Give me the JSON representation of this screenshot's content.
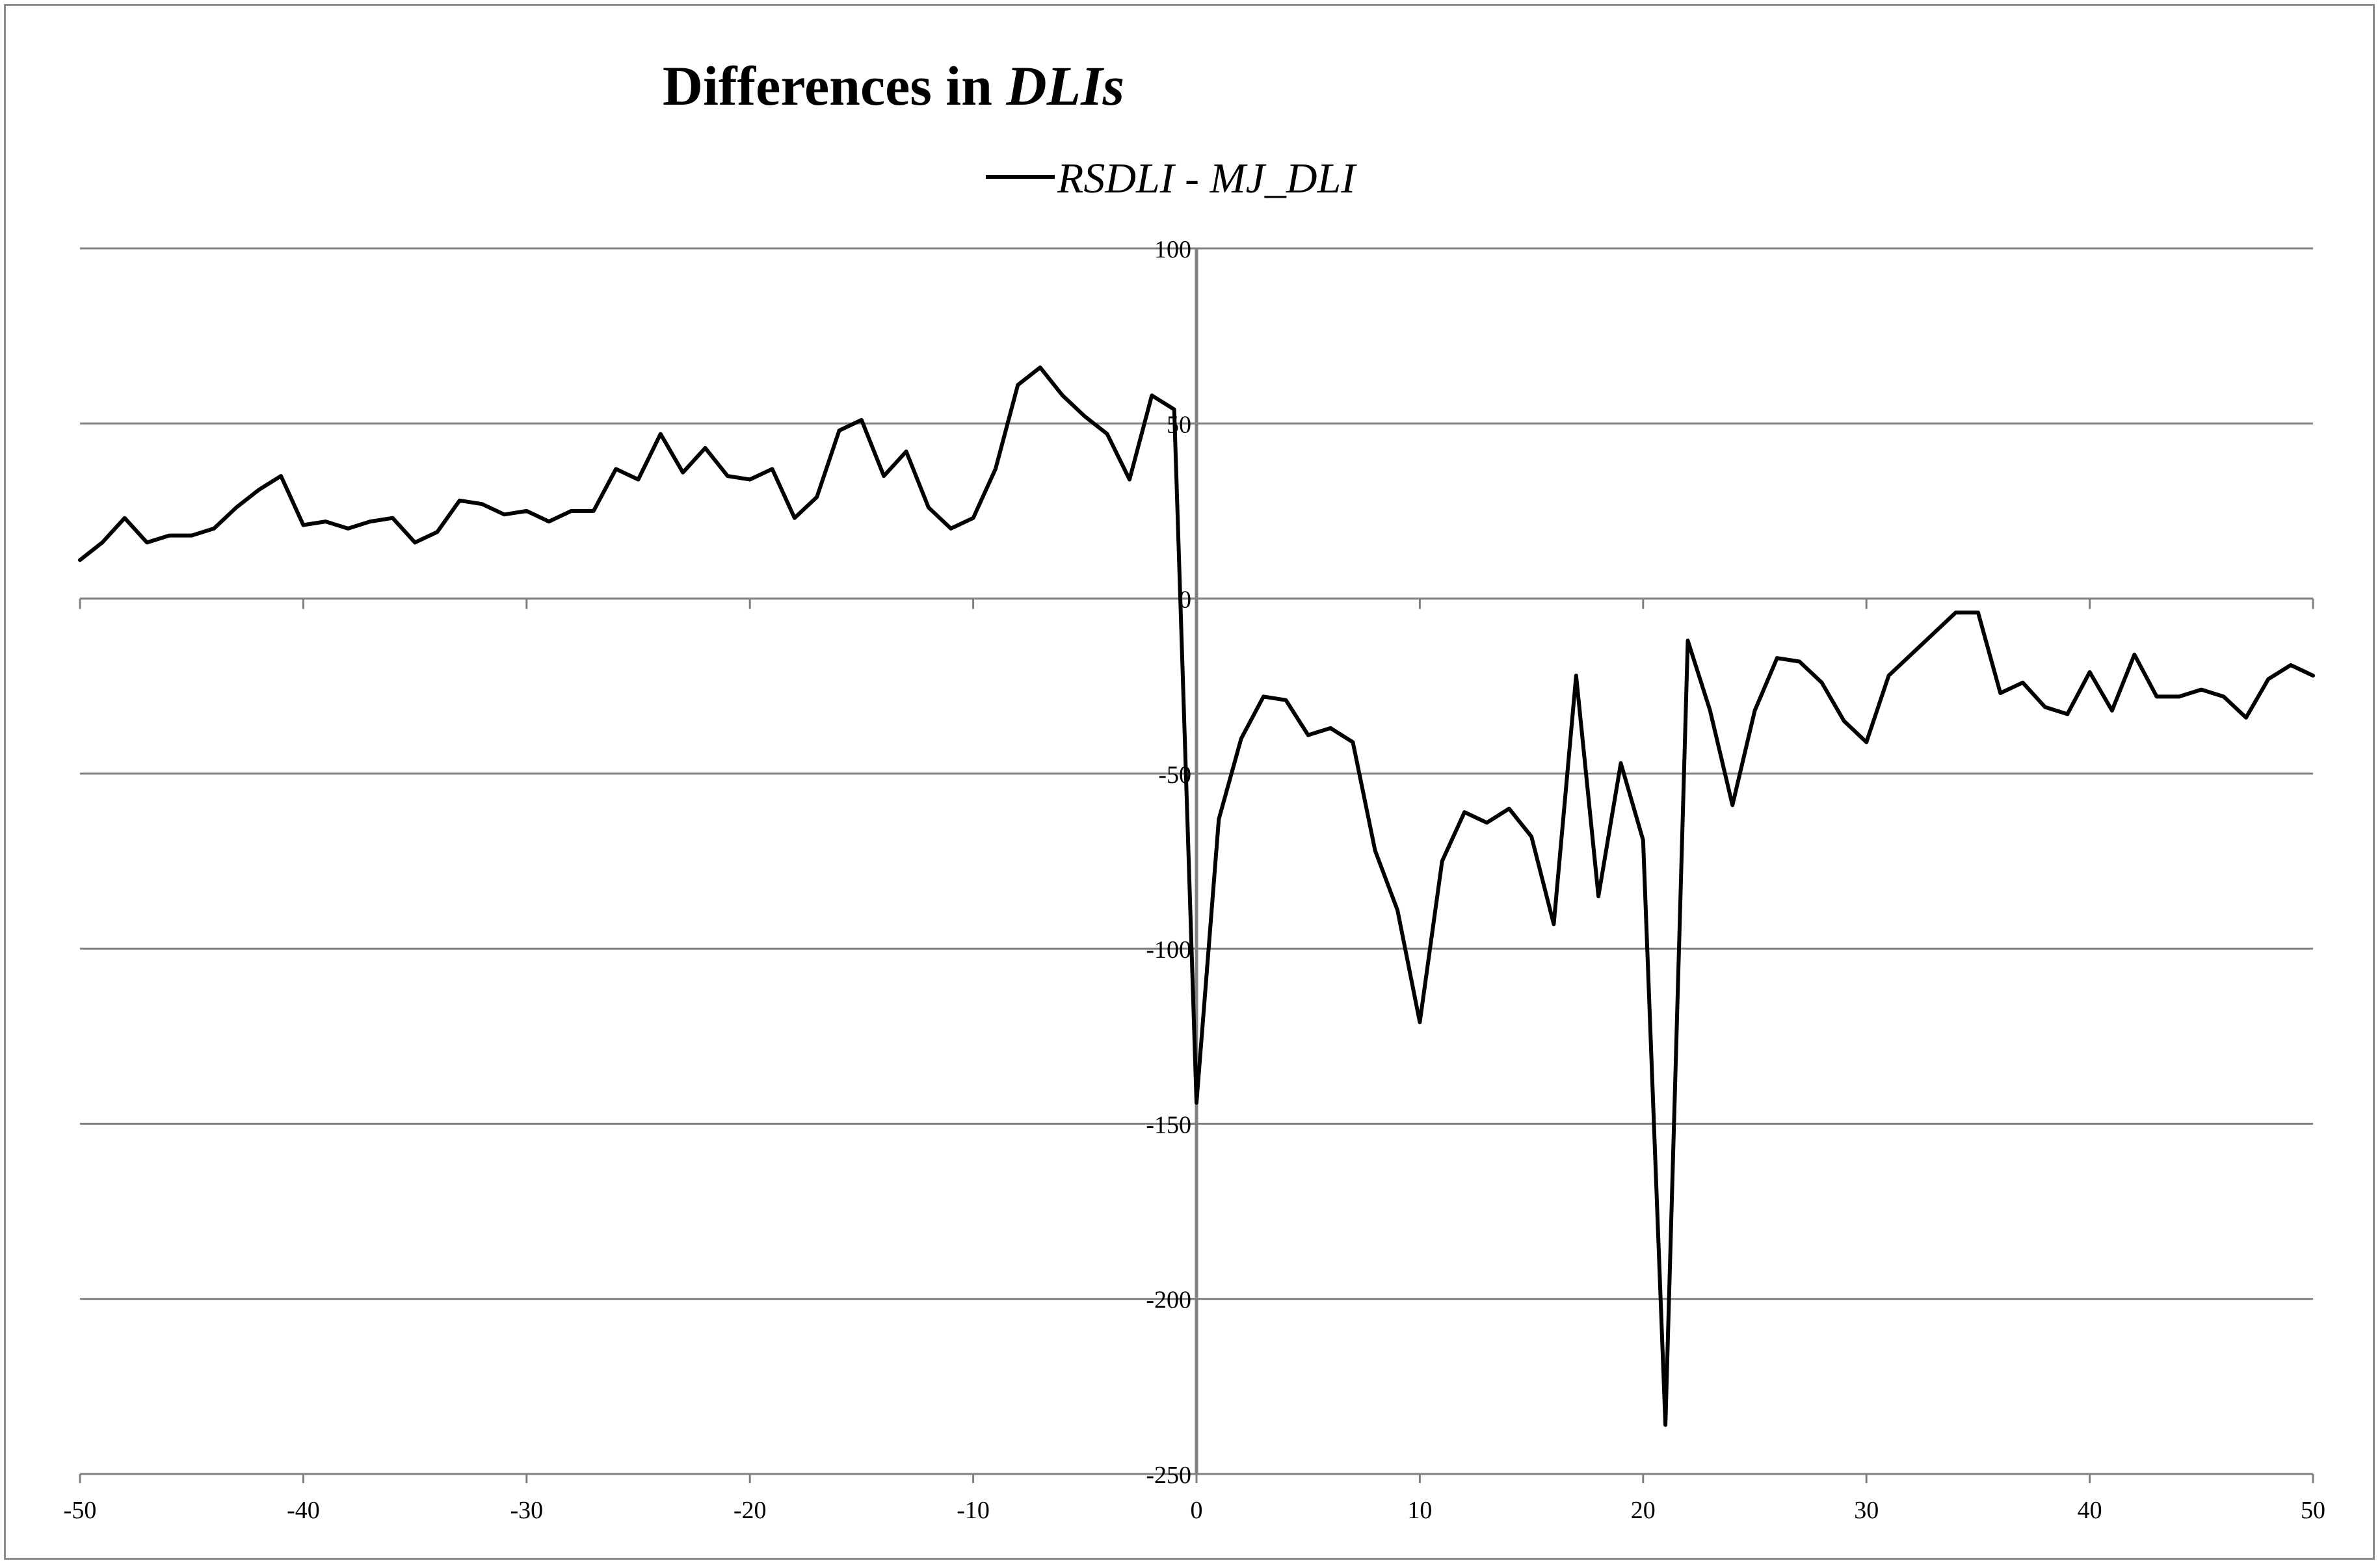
{
  "chart_data": {
    "type": "line",
    "title": {
      "normal": "Differences in ",
      "italic": "DLIs"
    },
    "xlabel": "",
    "ylabel": "",
    "xlim": [
      -50,
      50
    ],
    "ylim": [
      -250,
      100
    ],
    "x_ticks": [
      -50,
      -40,
      -30,
      -20,
      -10,
      0,
      10,
      20,
      30,
      40,
      50
    ],
    "y_ticks": [
      100,
      50,
      0,
      -50,
      -100,
      -150,
      -200,
      -250
    ],
    "grid": "horizontal",
    "legend_position": "top-center",
    "colors": {
      "line": "#000000",
      "grid": "#808080",
      "axis": "#808080",
      "frame": "#8c8c8c"
    },
    "series": [
      {
        "name": "RSDLI - MJ_DLI",
        "x": [
          -50,
          -49,
          -48,
          -47,
          -46,
          -45,
          -44,
          -43,
          -42,
          -41,
          -40,
          -39,
          -38,
          -37,
          -36,
          -35,
          -34,
          -33,
          -32,
          -31,
          -30,
          -29,
          -28,
          -27,
          -26,
          -25,
          -24,
          -23,
          -22,
          -21,
          -20,
          -19,
          -18,
          -17,
          -16,
          -15,
          -14,
          -13,
          -12,
          -11,
          -10,
          -9,
          -8,
          -7,
          -6,
          -5,
          -4,
          -3,
          -2,
          -1,
          0,
          1,
          2,
          3,
          4,
          5,
          6,
          7,
          8,
          9,
          10,
          11,
          12,
          13,
          14,
          15,
          16,
          17,
          18,
          19,
          20,
          21,
          22,
          23,
          24,
          25,
          26,
          27,
          28,
          29,
          30,
          31,
          32,
          33,
          34,
          35,
          36,
          37,
          38,
          39,
          40,
          41,
          42,
          43,
          44,
          45,
          46,
          47,
          48,
          49,
          50
        ],
        "values": [
          11,
          16,
          23,
          16,
          18,
          18,
          20,
          26,
          31,
          35,
          21,
          22,
          20,
          22,
          23,
          16,
          19,
          28,
          27,
          24,
          25,
          22,
          25,
          25,
          37,
          34,
          47,
          36,
          43,
          35,
          34,
          37,
          23,
          29,
          48,
          51,
          35,
          42,
          26,
          20,
          23,
          37,
          61,
          66,
          58,
          52,
          47,
          34,
          58,
          54,
          -144,
          -63,
          -40,
          -28,
          -29,
          -39,
          -37,
          -41,
          -72,
          -89,
          -121,
          -75,
          -61,
          -64,
          -60,
          -68,
          -93,
          -22,
          -85,
          -47,
          -69,
          -236,
          -12,
          -32,
          -59,
          -32,
          -17,
          -18,
          -24,
          -35,
          -41,
          -22,
          -16,
          -10,
          -4,
          -4,
          -27,
          -24,
          -31,
          -33,
          -21,
          -32,
          -16,
          -28,
          -28,
          -26,
          -28,
          -34,
          -23,
          -19,
          -22
        ]
      }
    ]
  }
}
